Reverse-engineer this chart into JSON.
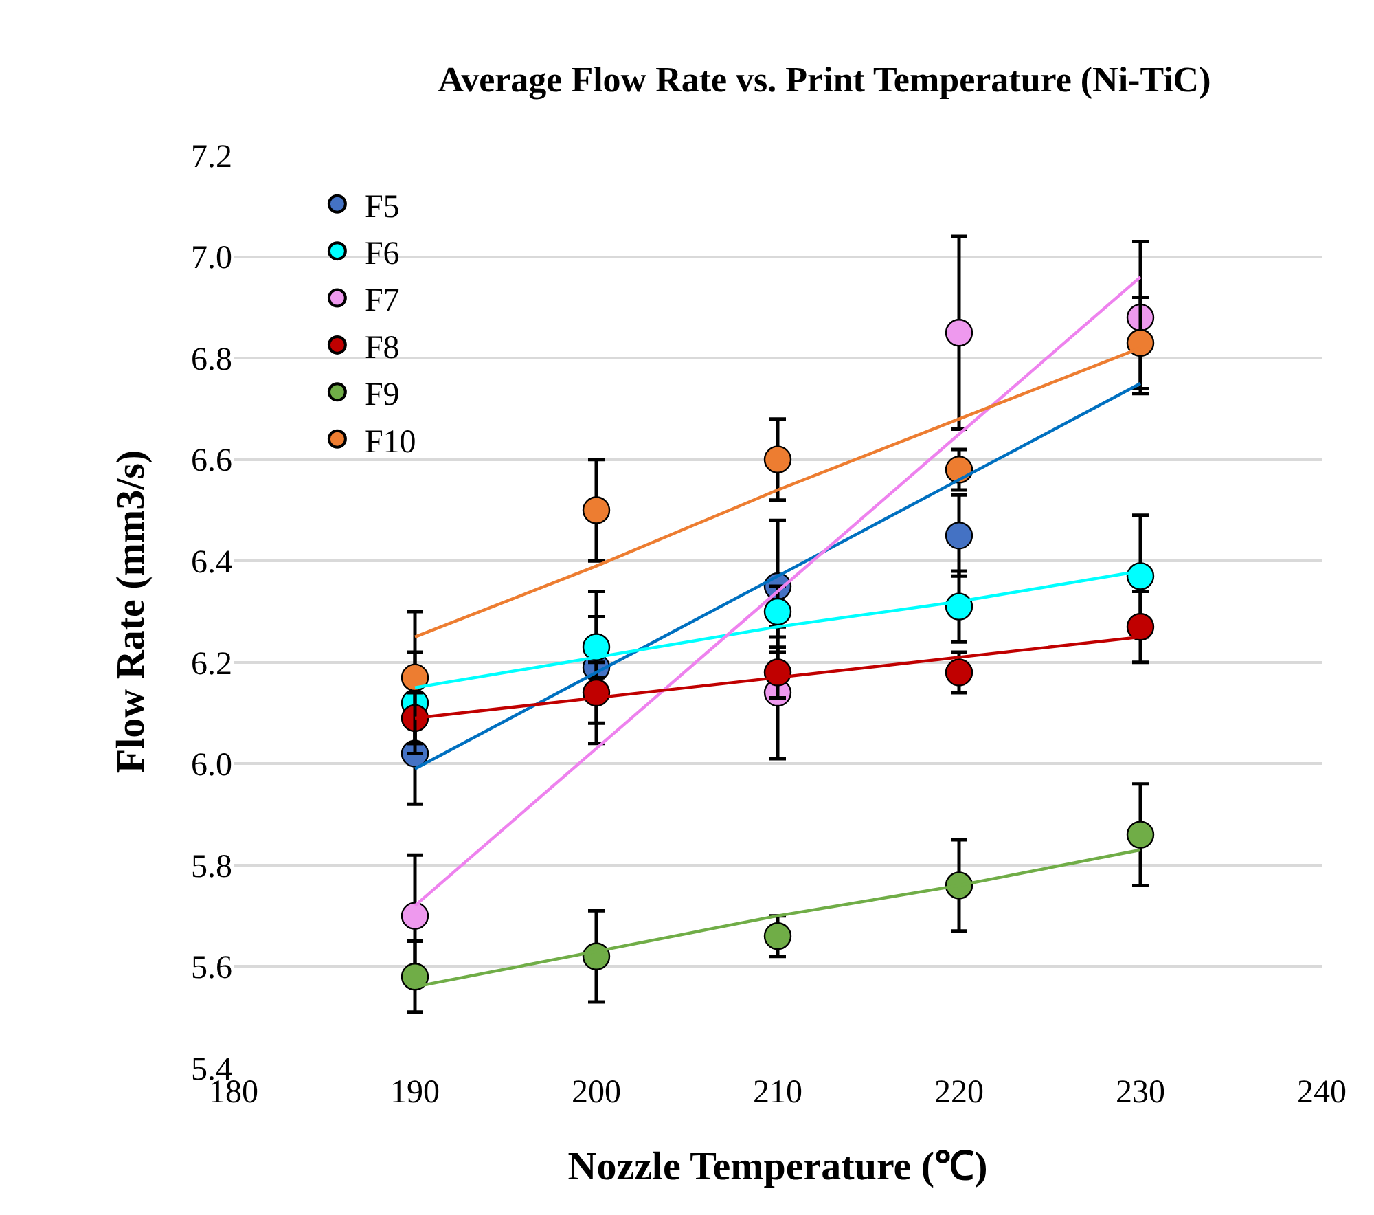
{
  "chart_data": {
    "type": "scatter",
    "title": "Average Flow Rate vs. Print Temperature (Ni-TiC)",
    "xlabel": "Nozzle Temperature (℃)",
    "ylabel": "Flow Rate (mm3/s)",
    "x": [
      190,
      200,
      210,
      220,
      230
    ],
    "series": [
      {
        "name": "F5",
        "color": "#4472c4",
        "values": [
          6.02,
          6.19,
          6.35,
          6.45,
          null
        ],
        "errors": [
          0.1,
          0.15,
          0.13,
          0.08,
          null
        ]
      },
      {
        "name": "F6",
        "color": "#00ffff",
        "values": [
          6.12,
          6.23,
          6.3,
          6.31,
          6.37
        ],
        "errors": [
          0.1,
          0.06,
          0.05,
          0.07,
          0.12
        ]
      },
      {
        "name": "F7",
        "color": "#ee99ee",
        "values": [
          5.7,
          null,
          6.14,
          6.85,
          6.88
        ],
        "errors": [
          0.12,
          null,
          0.13,
          0.19,
          0.15
        ]
      },
      {
        "name": "F8",
        "color": "#c00000",
        "values": [
          6.09,
          6.14,
          6.18,
          6.18,
          6.27
        ],
        "errors": [
          0.05,
          0.06,
          0.05,
          0.04,
          0.07
        ]
      },
      {
        "name": "F9",
        "color": "#70ad47",
        "values": [
          5.58,
          5.62,
          5.66,
          5.76,
          5.86
        ],
        "errors": [
          0.07,
          0.09,
          0.04,
          0.09,
          0.1
        ]
      },
      {
        "name": "F10",
        "color": "#ed7d31",
        "values": [
          6.17,
          6.5,
          6.6,
          6.58,
          6.83
        ],
        "errors": [
          0.13,
          0.1,
          0.08,
          0.04,
          0.09
        ]
      },
      {
        "type": "line",
        "marker": "none",
        "color": "#0070c0",
        "values": [
          5.99,
          6.18,
          6.37,
          6.56,
          6.75
        ]
      },
      {
        "type": "line",
        "marker": "none",
        "color": "#00ffff",
        "values": [
          6.15,
          6.21,
          6.27,
          6.32,
          6.38
        ]
      },
      {
        "type": "line",
        "marker": "none",
        "color": "#ee82ee",
        "values": [
          5.72,
          6.03,
          6.34,
          6.65,
          6.96
        ]
      },
      {
        "type": "line",
        "marker": "none",
        "color": "#c00000",
        "values": [
          6.09,
          6.13,
          6.17,
          6.21,
          6.25
        ]
      },
      {
        "type": "line",
        "marker": "none",
        "color": "#70ad47",
        "values": [
          5.56,
          5.63,
          5.7,
          5.76,
          5.83
        ]
      },
      {
        "type": "line",
        "marker": "none",
        "color": "#ed7d31",
        "values": [
          6.25,
          6.39,
          6.54,
          6.68,
          6.82
        ]
      }
    ],
    "xlim": [
      180,
      240
    ],
    "xticks": [
      180,
      190,
      200,
      210,
      220,
      230,
      240
    ],
    "ylim": [
      5.4,
      7.2
    ],
    "yticks": [
      {
        "value": 5.4,
        "label": "5.4"
      },
      {
        "value": 5.6,
        "label": "5.6"
      },
      {
        "value": 5.8,
        "label": "5.8"
      },
      {
        "value": 6.0,
        "label": "6.0"
      },
      {
        "value": 6.2,
        "label": "6.2"
      },
      {
        "value": 6.4,
        "label": "6.4"
      },
      {
        "value": 6.6,
        "label": "6.6"
      },
      {
        "value": 6.8,
        "label": "6.8"
      },
      {
        "value": 7.0,
        "label": "7.0"
      },
      {
        "value": 7.2,
        "label": "7.2"
      }
    ],
    "grid": "y",
    "legend": "top left",
    "marker": "circle",
    "line_style": "solid"
  }
}
